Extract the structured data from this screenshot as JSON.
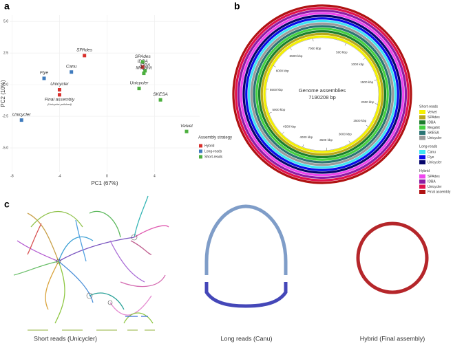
{
  "panel_labels": [
    "a",
    "b",
    "c"
  ],
  "chart_data": [
    {
      "type": "scatter",
      "xlabel": "PC1 (67%)",
      "ylabel": "PC2 (10%)",
      "xlim": [
        -8.2,
        7.8
      ],
      "xticks": [
        -8,
        -4,
        0,
        4
      ],
      "ylim": [
        -6.9,
        5.5
      ],
      "yticks": [
        {
          "value": -5,
          "label": "-5.0"
        },
        {
          "value": -2.5,
          "label": "-2.5"
        },
        {
          "value": 0,
          "label": "0.0"
        },
        {
          "value": 2.5,
          "label": "2.5"
        },
        {
          "value": 5,
          "label": "5.0"
        }
      ],
      "grid": true,
      "legend_title": "Assembly strategy",
      "series": [
        {
          "name": "Hybrid",
          "color": "#d9302c",
          "x": [
            -1.9,
            3.0,
            -4.0,
            -4.0
          ],
          "values": [
            2.3,
            1.4,
            -0.4,
            -0.8
          ],
          "point_labels": [
            "SPAdes",
            "IDBA",
            "Unicycler",
            "Final assembly"
          ]
        },
        {
          "name": "Long-reads",
          "color": "#3f7bbd",
          "x": [
            -3.0,
            -5.3,
            -7.2
          ],
          "values": [
            1.0,
            0.5,
            -2.8
          ],
          "point_labels": [
            "Canu",
            "Flye",
            "Unicycler"
          ]
        },
        {
          "name": "Short-reads",
          "color": "#4caf3e",
          "x": [
            3.0,
            3.2,
            3.1,
            2.7,
            4.5,
            6.7
          ],
          "values": [
            1.8,
            1.1,
            0.9,
            -0.3,
            -1.2,
            -3.7
          ],
          "point_labels": [
            "SPAdes",
            "IDBA",
            "Megahit",
            "Unicycler",
            "SKESA",
            "Velvet"
          ]
        }
      ],
      "annotation": "(Unicycler polished)"
    },
    {
      "type": "ring",
      "title": "Genome assemblies",
      "center_value": 7190208,
      "center_value_label": "7190208 bp",
      "xlim": [
        0,
        7190.208
      ],
      "xticks": [
        {
          "value": 500,
          "label": "500 kbp"
        },
        {
          "value": 1000,
          "label": "1000 kbp"
        },
        {
          "value": 1500,
          "label": "1500 kbp"
        },
        {
          "value": 2000,
          "label": "2000 kbp"
        },
        {
          "value": 2500,
          "label": "2500 kbp"
        },
        {
          "value": 3000,
          "label": "3000 kbp"
        },
        {
          "value": 3500,
          "label": "3500 kbp"
        },
        {
          "value": 4000,
          "label": "4000 kbp"
        },
        {
          "value": 4500,
          "label": "4500 kbp"
        },
        {
          "value": 5000,
          "label": "5000 kbp"
        },
        {
          "value": 5500,
          "label": "5500 kbp"
        },
        {
          "value": 6000,
          "label": "6000 kbp"
        },
        {
          "value": 6500,
          "label": "6500 kbp"
        },
        {
          "value": 7000,
          "label": "7000 kbp"
        }
      ],
      "groups": [
        {
          "name": "Short-reads",
          "series": [
            {
              "name": "Velvet",
              "color": "#f4f000"
            },
            {
              "name": "SPAdes",
              "color": "#b8a81c"
            },
            {
              "name": "IDBA",
              "color": "#1c7d2c"
            },
            {
              "name": "Megahit",
              "color": "#44d040"
            },
            {
              "name": "SKESA",
              "color": "#2a7474"
            },
            {
              "name": "Unicycler",
              "color": "#9a9a9a"
            }
          ]
        },
        {
          "name": "Long-reads",
          "series": [
            {
              "name": "Canu",
              "color": "#40e4f2"
            },
            {
              "name": "Flye",
              "color": "#0a0ae8"
            },
            {
              "name": "Unicycler",
              "color": "#06066c"
            }
          ]
        },
        {
          "name": "Hybrid",
          "series": [
            {
              "name": "SPAdes",
              "color": "#ee46ee"
            },
            {
              "name": "IDBA",
              "color": "#8c1ca4"
            },
            {
              "name": "Unicycler",
              "color": "#e0124e"
            },
            {
              "name": "Final assembly",
              "color": "#b01212"
            }
          ]
        }
      ]
    }
  ],
  "assembly_graphs": {
    "labels": [
      "Short reads (Unicycler)",
      "Long reads (Canu)",
      "Hybrid (Final assembly)"
    ]
  }
}
